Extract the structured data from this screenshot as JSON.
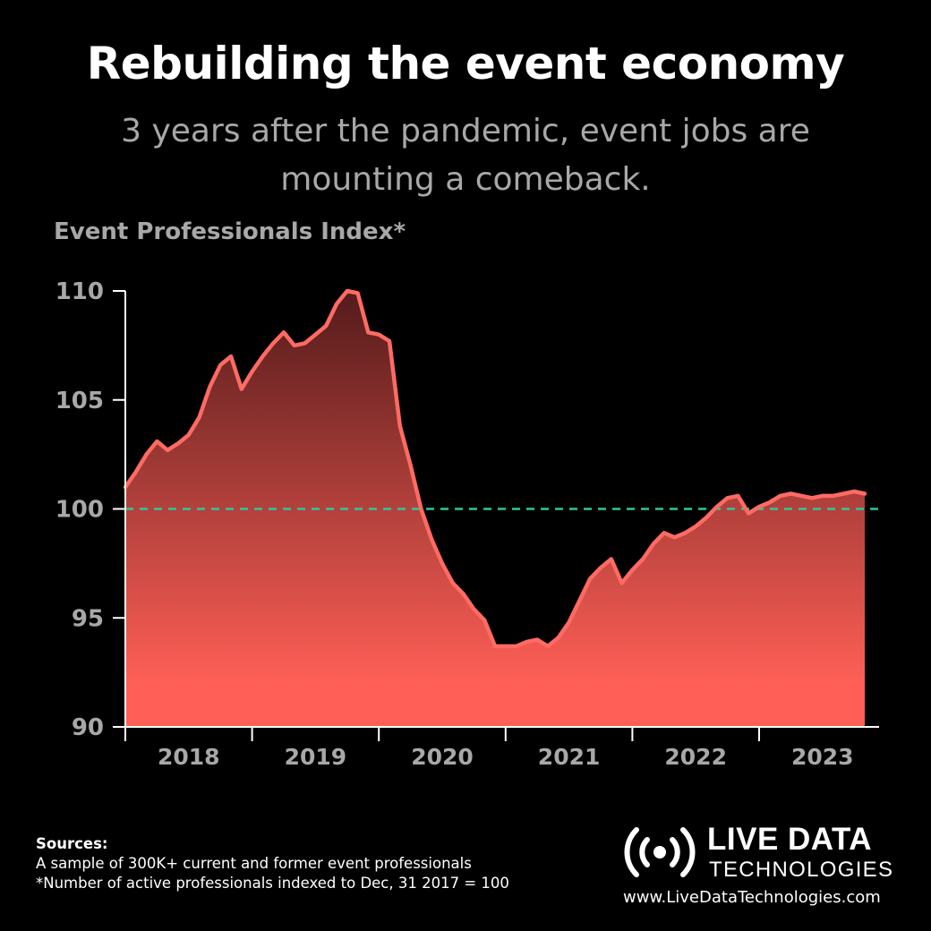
{
  "header": {
    "title": "Rebuilding the event economy",
    "subtitle_line1": "3 years after the pandemic, event jobs are",
    "subtitle_line2": "mounting a comeback."
  },
  "chart_data": {
    "type": "area",
    "title": "Event Professionals Index*",
    "x_tick_labels": [
      "2018",
      "2019",
      "2020",
      "2021",
      "2022",
      "2023"
    ],
    "yticks": [
      90,
      95,
      100,
      105,
      110
    ],
    "ylim": [
      90,
      110
    ],
    "reference_line": {
      "value": 100,
      "style": "dashed",
      "color": "#2ec79a"
    },
    "grid": false,
    "series": [
      {
        "values": [
          101.0,
          101.7,
          102.5,
          103.1,
          102.7,
          103.0,
          103.4,
          104.2,
          105.6,
          106.6,
          107.0,
          105.5,
          106.3,
          107.0,
          107.6,
          108.1,
          107.5,
          107.6,
          108.0,
          108.4,
          109.4,
          110.0,
          109.9,
          108.1,
          108.0,
          107.7,
          103.8,
          102.0,
          100.0,
          98.6,
          97.5,
          96.6,
          96.1,
          95.4,
          94.9,
          93.7,
          93.7,
          93.7,
          93.9,
          94.0,
          93.7,
          94.1,
          94.8,
          95.8,
          96.8,
          97.3,
          97.7,
          96.6,
          97.2,
          97.7,
          98.4,
          98.9,
          98.7,
          98.9,
          99.2,
          99.6,
          100.1,
          100.5,
          100.6,
          99.8,
          100.1,
          100.3,
          100.6,
          100.7,
          100.6,
          100.5,
          100.6,
          100.6,
          100.7,
          100.8,
          100.7
        ]
      }
    ],
    "colors": {
      "line": "#ff6b63",
      "fill_top": "#541b1b",
      "fill_bottom": "#ff5f56",
      "axis": "#ffffff",
      "tick_label": "#a8a8a8"
    }
  },
  "sources": {
    "title": "Sources:",
    "line1": "A sample of 300K+ current and former event professionals",
    "line2": "*Number of active professionals indexed to Dec, 31 2017 = 100"
  },
  "brand": {
    "name_line1": "LIVE DATA",
    "name_line2": "TECHNOLOGIES",
    "url": "www.LiveDataTechnologies.com",
    "logo_icon": "broadcast-icon"
  }
}
